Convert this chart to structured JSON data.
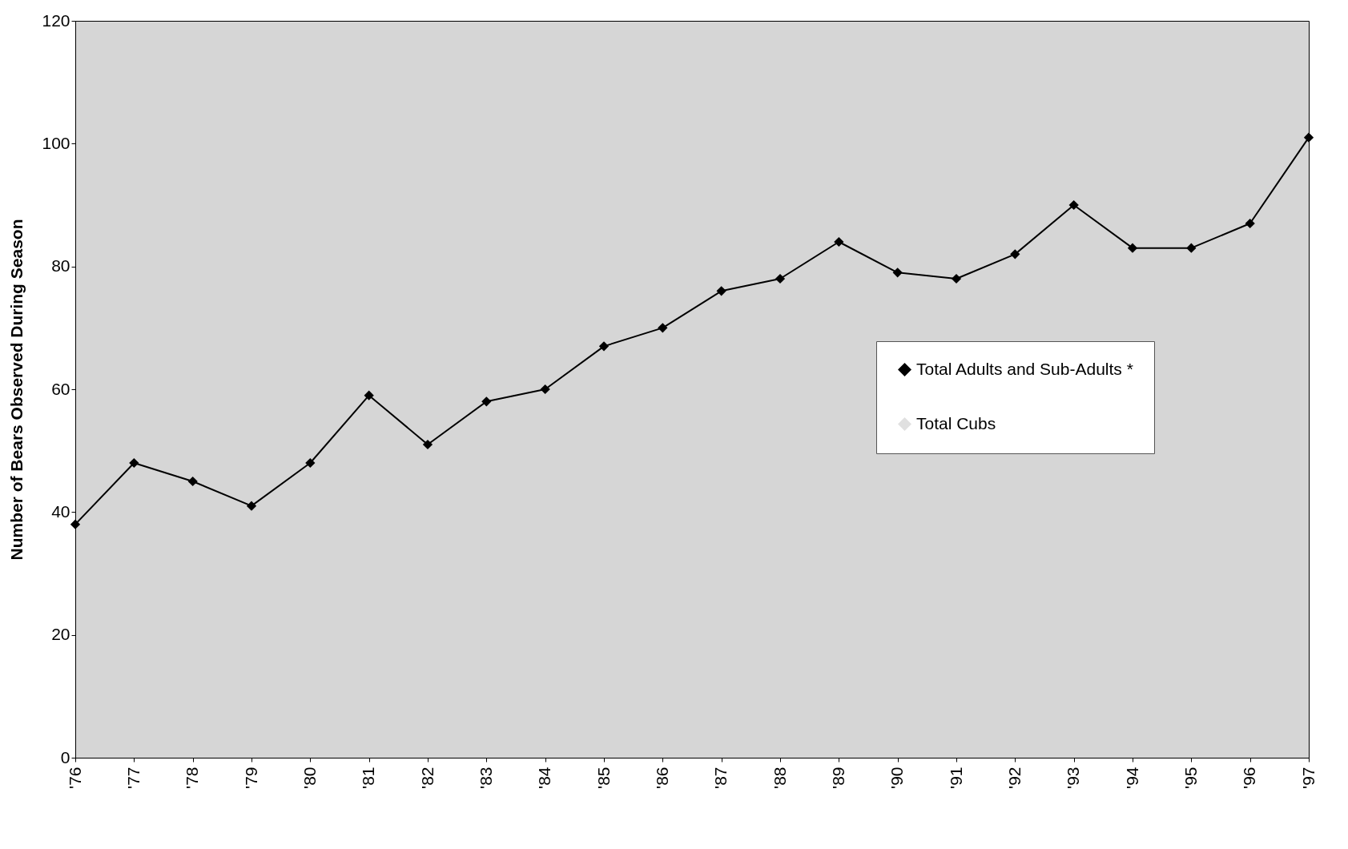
{
  "chart_data": {
    "type": "line",
    "ylabel": "Number of Bears Observed During Season",
    "categories": [
      "'76",
      "'77",
      "'78",
      "'79",
      "'80",
      "'81",
      "'82",
      "'83",
      "'84",
      "'85",
      "'86",
      "'87",
      "'88",
      "'89",
      "'90",
      "'91",
      "'92",
      "'93",
      "'94",
      "'95",
      "'96",
      "'97"
    ],
    "series": [
      {
        "name": "Total Adults and Sub-Adults *",
        "color": "#000000",
        "values": [
          38,
          48,
          45,
          41,
          48,
          59,
          51,
          58,
          60,
          67,
          70,
          76,
          78,
          84,
          79,
          78,
          82,
          90,
          83,
          83,
          87,
          101
        ]
      },
      {
        "name": "Total Cubs",
        "color": "#e0e0e0",
        "values": [
          null,
          null,
          null,
          null,
          null,
          null,
          null,
          null,
          null,
          null,
          null,
          null,
          null,
          null,
          null,
          null,
          null,
          null,
          null,
          null,
          null,
          null
        ]
      }
    ],
    "ylim": [
      0,
      120
    ],
    "yticks": [
      0,
      20,
      40,
      60,
      80,
      100,
      120
    ],
    "legend": "right",
    "marker": "diamond",
    "line_style": "solid"
  }
}
